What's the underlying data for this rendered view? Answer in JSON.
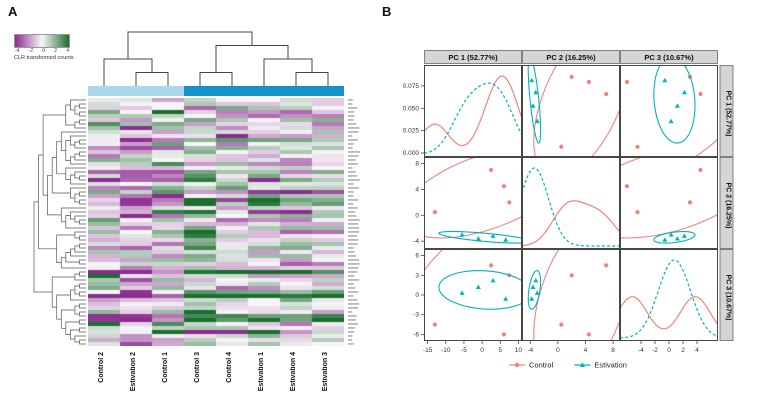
{
  "panels": {
    "a_label": "A",
    "b_label": "B"
  },
  "chart_data": [
    {
      "type": "heatmap",
      "legend_title": "CLR transformed counts",
      "legend_ticks": [
        "-4",
        "-2",
        "0",
        "2",
        "4"
      ],
      "columns": [
        "Control 2",
        "Estivation 2",
        "Control 1",
        "Control 3",
        "Control 4",
        "Estivation 1",
        "Estivation 4",
        "Estivation 3"
      ],
      "column_groups": [
        "light",
        "light",
        "light",
        "dark",
        "dark",
        "dark",
        "dark",
        "dark"
      ],
      "annotation_colors": {
        "light": "#a9d6e8",
        "dark": "#1792c8"
      },
      "color_scale": {
        "negative": "#8b2c8f",
        "zero": "#f9f6f9",
        "positive": "#1a6e2e"
      },
      "col_tree": [
        [
          0,
          [
            1,
            2
          ]
        ],
        [
          [
            3,
            4
          ],
          [
            5,
            [
              6,
              7
            ]
          ]
        ]
      ],
      "n_rows": 62,
      "seed": 11
    },
    {
      "type": "scatter",
      "subtype": "pca_pairs",
      "dims": [
        "PC 1 (52.77%)",
        "PC 2 (16.25%)",
        "PC 3 (10.67%)"
      ],
      "axis_ranges": [
        [
          -16,
          11
        ],
        [
          -5.2,
          9
        ],
        [
          -7,
          7
        ]
      ],
      "x_ticks": [
        [
          "-15",
          "-10",
          "-5",
          "0",
          "5",
          "10"
        ],
        [
          "-4",
          "0",
          "4",
          "8"
        ],
        [
          "-4",
          "-2",
          "0",
          "2",
          "4"
        ]
      ],
      "y_ticks": [
        [
          "0.000",
          "0.025",
          "0.050",
          "0.075"
        ],
        [
          "-4",
          "0",
          "4",
          "8"
        ],
        [
          "-6",
          "-3",
          "0",
          "3",
          "6"
        ]
      ],
      "series": [
        {
          "name": "Control",
          "color": "#f08478",
          "marker": "circle",
          "points": [
            [
              -13,
              0.5,
              -4.5
            ],
            [
              2.5,
              7,
              4.5
            ],
            [
              6,
              4.5,
              -6
            ],
            [
              7.5,
              2,
              3
            ]
          ]
        },
        {
          "name": "Estivation",
          "color": "#00b4bc",
          "marker": "triangle",
          "points": [
            [
              -5.5,
              -3,
              0.3
            ],
            [
              -1,
              -3.6,
              1.2
            ],
            [
              3,
              -3.2,
              2.2
            ],
            [
              6.5,
              -3.8,
              -0.6
            ]
          ]
        }
      ],
      "legend": [
        "Control",
        "Estivation"
      ]
    }
  ]
}
